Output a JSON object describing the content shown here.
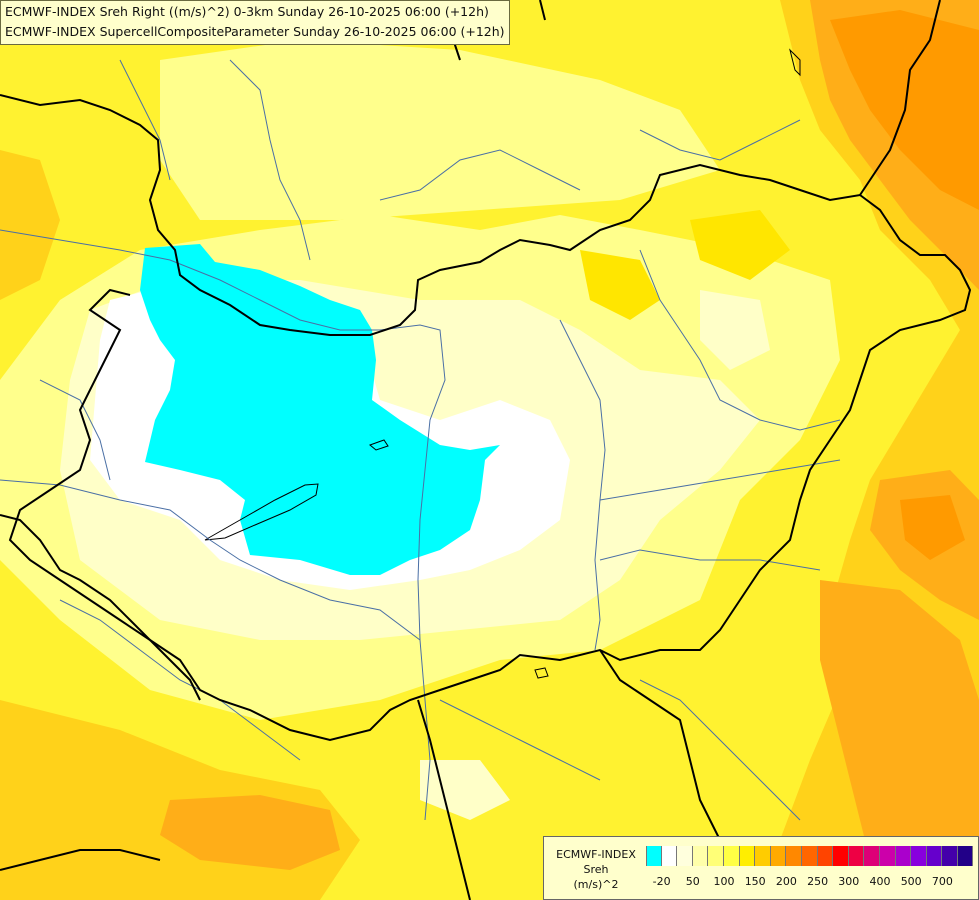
{
  "header": {
    "line1": "ECMWF-INDEX Sreh Right ((m/s)^2) 0-3km Sunday 26-10-2025 06:00 (+12h)",
    "line2": "ECMWF-INDEX SupercellCompositeParameter Sunday 26-10-2025 06:00 (+12h)"
  },
  "legend": {
    "title1": "ECMWF-INDEX",
    "title2": "Sreh",
    "title3": "(m/s)^2",
    "colors": [
      "#00ffff",
      "#ffffff",
      "#ffffdd",
      "#ffffaa",
      "#ffff77",
      "#ffff44",
      "#ffee00",
      "#ffcc00",
      "#ffaa00",
      "#ff8800",
      "#ff6600",
      "#ff4400",
      "#ff0000",
      "#ee0044",
      "#dd0077",
      "#cc00aa",
      "#aa00cc",
      "#8800dd",
      "#6600cc",
      "#4400aa",
      "#220088"
    ],
    "labels": [
      "-20",
      "50",
      "100",
      "150",
      "200",
      "250",
      "300",
      "400",
      "500",
      "700"
    ]
  },
  "map": {
    "colors": {
      "cyan": "#00ffff",
      "white": "#ffffff",
      "pale": "#ffffc8",
      "light": "#ffff88",
      "yellow": "#fff200",
      "gold": "#ffd200",
      "orange": "#ffae10",
      "deep_orange": "#ff8a00",
      "border": "#000000",
      "river": "#4a6fa5"
    }
  }
}
